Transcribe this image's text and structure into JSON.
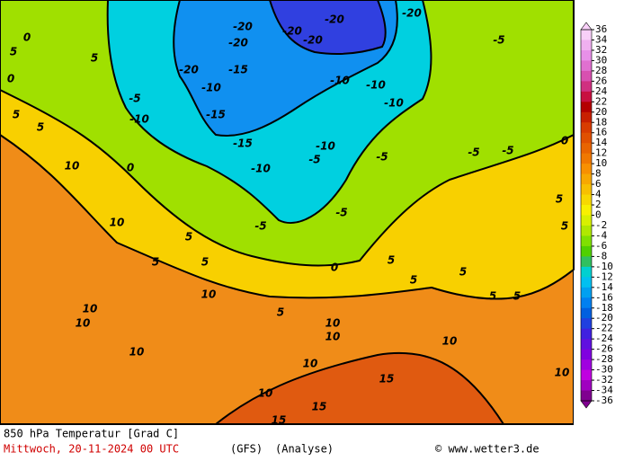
{
  "map": {
    "contour_labels": [
      "10",
      "10",
      "10",
      "10",
      "10",
      "10",
      "10",
      "10",
      "10",
      "10",
      "10",
      "10",
      "15",
      "15",
      "15",
      "5",
      "5",
      "5",
      "5",
      "5",
      "5",
      "5",
      "5",
      "5",
      "5",
      "5",
      "5",
      "5",
      "5",
      "5",
      "0",
      "0",
      "0",
      "0",
      "0",
      "-5",
      "-5",
      "-5",
      "-5",
      "-5",
      "-5",
      "-5",
      "-5",
      "-10",
      "-10",
      "-10",
      "-10",
      "-10",
      "-10",
      "-10",
      "-15",
      "-15",
      "-15",
      "-20",
      "-20",
      "-20",
      "-20",
      "-20",
      "-20",
      "-20"
    ]
  },
  "legend": {
    "labels": [
      36,
      34,
      32,
      30,
      28,
      26,
      24,
      22,
      20,
      18,
      16,
      14,
      12,
      10,
      8,
      6,
      4,
      2,
      0,
      -2,
      -4,
      -6,
      -8,
      -10,
      -12,
      -14,
      -16,
      -18,
      -20,
      -22,
      -24,
      -26,
      -28,
      -30,
      -32,
      -34,
      -36
    ],
    "colors": [
      "#f8d0f8",
      "#f0b0f0",
      "#e890e8",
      "#e070d0",
      "#d850b0",
      "#d03080",
      "#c81040",
      "#b40000",
      "#c82000",
      "#d83c00",
      "#e05000",
      "#e86400",
      "#f07800",
      "#f89000",
      "#f8a800",
      "#f8c000",
      "#f8d800",
      "#f8f000",
      "#d8f000",
      "#b0e800",
      "#80e000",
      "#50d000",
      "#30c060",
      "#00d0d0",
      "#00c0f0",
      "#00a0f0",
      "#0080f0",
      "#0060e0",
      "#2040e0",
      "#4020e0",
      "#6010e0",
      "#8000e0",
      "#a000e0",
      "#c000e0",
      "#a000c0",
      "#800090"
    ]
  },
  "footer": {
    "title": "850 hPa Temperatur [Grad C]",
    "date": "Mittwoch, 20-11-2024  00 UTC",
    "model": "(GFS)",
    "run": "(Analyse)",
    "site": "© www.wetter3.de"
  }
}
